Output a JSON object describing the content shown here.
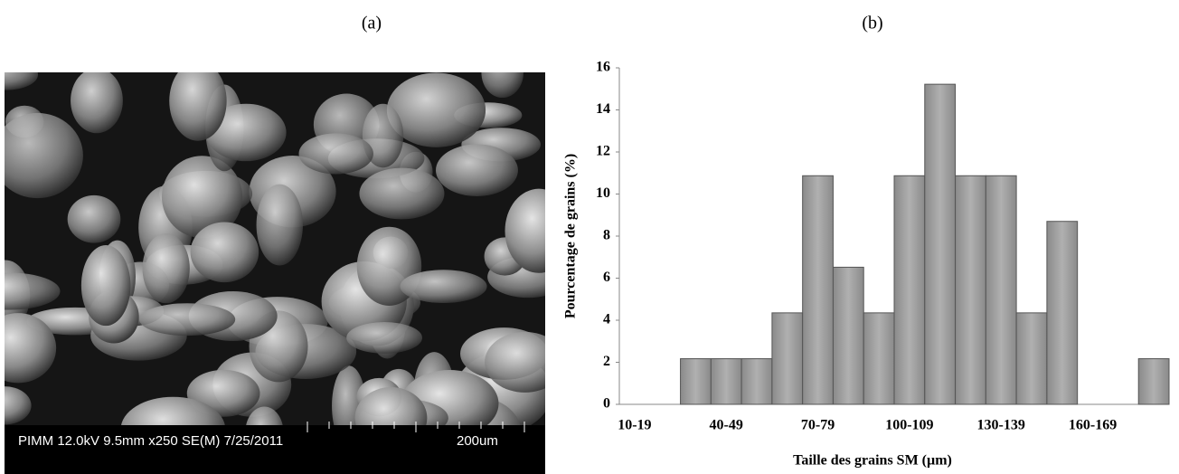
{
  "panel_a": {
    "label": "(a)",
    "caption": "PIMM 12.0kV 9.5mm x250 SE(M) 7/25/2011",
    "scale_bar": "200um"
  },
  "panel_b": {
    "label": "(b)"
  },
  "chart_data": {
    "type": "bar",
    "x_label": "Taille des grains  SM (µm)",
    "y_label": "Pourcentage de grains   (%)",
    "categories": [
      "10-19",
      null,
      null,
      "40-49",
      null,
      null,
      "70-79",
      null,
      null,
      "100-109",
      null,
      null,
      "130-139",
      null,
      null,
      "160-169",
      null,
      null
    ],
    "values": [
      0,
      0,
      2.17,
      2.17,
      2.17,
      4.35,
      10.87,
      6.52,
      4.35,
      10.87,
      15.22,
      10.87,
      10.87,
      4.35,
      8.7,
      0,
      0,
      2.17
    ],
    "color": "#9a9a9a",
    "ylim": [
      0,
      16
    ],
    "yticks": [
      0,
      2,
      4,
      6,
      8,
      10,
      12,
      14,
      16
    ],
    "grid": false
  }
}
